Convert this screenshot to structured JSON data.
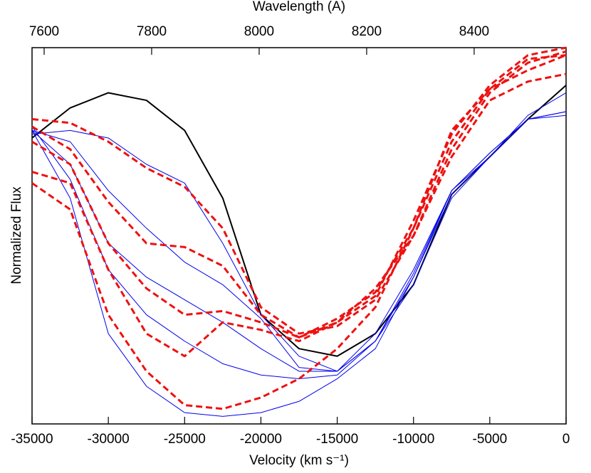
{
  "chart_data": {
    "type": "line",
    "xlabel": "Velocity (km s⁻¹)",
    "ylabel": "Normalized Flux",
    "x2label": "Wavelength (A)",
    "x": [
      -35000,
      -32500,
      -30000,
      -27500,
      -25000,
      -22500,
      -20000,
      -17500,
      -15000,
      -12500,
      -10000,
      -7500,
      -5000,
      -2500,
      0
    ],
    "xlim": [
      -35000,
      0
    ],
    "xticks": [
      -35000,
      -30000,
      -25000,
      -20000,
      -15000,
      -10000,
      -5000,
      0
    ],
    "x2lim": [
      7577.5,
      8571
    ],
    "x2ticks": [
      7600,
      7800,
      8000,
      8200,
      8400
    ],
    "ylim": [
      0,
      1
    ],
    "series": [
      {
        "color": "#000000",
        "dashed": false,
        "width": 2,
        "values": [
          0.76,
          0.84,
          0.88,
          0.86,
          0.78,
          0.6,
          0.29,
          0.2,
          0.18,
          0.24,
          0.37,
          0.61,
          0.71,
          0.81,
          0.9
        ]
      },
      {
        "color": "#0000ee",
        "dashed": false,
        "width": 1,
        "values": [
          0.77,
          0.78,
          0.76,
          0.69,
          0.64,
          0.48,
          0.29,
          0.18,
          0.14,
          0.22,
          0.37,
          0.6,
          0.71,
          0.82,
          0.88
        ]
      },
      {
        "color": "#0000ee",
        "dashed": false,
        "width": 1,
        "values": [
          0.78,
          0.75,
          0.62,
          0.52,
          0.43,
          0.37,
          0.28,
          0.15,
          0.14,
          0.22,
          0.39,
          0.62,
          0.71,
          0.81,
          0.83
        ]
      },
      {
        "color": "#0000ee",
        "dashed": false,
        "width": 1,
        "values": [
          0.78,
          0.69,
          0.48,
          0.39,
          0.33,
          0.27,
          0.2,
          0.14,
          0.14,
          0.24,
          0.41,
          0.62,
          0.72,
          0.81,
          0.83
        ]
      },
      {
        "color": "#0000ee",
        "dashed": false,
        "width": 1,
        "values": [
          0.79,
          0.65,
          0.41,
          0.29,
          0.22,
          0.16,
          0.13,
          0.12,
          0.13,
          0.22,
          0.4,
          0.62,
          0.72,
          0.81,
          0.83
        ]
      },
      {
        "color": "#0000ee",
        "dashed": false,
        "width": 1,
        "values": [
          0.78,
          0.6,
          0.24,
          0.1,
          0.03,
          0.02,
          0.03,
          0.06,
          0.12,
          0.2,
          0.39,
          0.61,
          0.71,
          0.81,
          0.82
        ]
      },
      {
        "color": "#ee1111",
        "dashed": true,
        "width": 3,
        "values": [
          0.81,
          0.8,
          0.75,
          0.68,
          0.63,
          0.52,
          0.31,
          0.24,
          0.26,
          0.33,
          0.5,
          0.73,
          0.88,
          0.96,
          0.99
        ]
      },
      {
        "color": "#ee1111",
        "dashed": true,
        "width": 3,
        "values": [
          0.79,
          0.73,
          0.59,
          0.48,
          0.47,
          0.42,
          0.29,
          0.23,
          0.28,
          0.35,
          0.52,
          0.75,
          0.89,
          0.97,
          0.98
        ]
      },
      {
        "color": "#ee1111",
        "dashed": true,
        "width": 3,
        "values": [
          0.75,
          0.69,
          0.48,
          0.36,
          0.29,
          0.3,
          0.27,
          0.23,
          0.27,
          0.34,
          0.54,
          0.77,
          0.9,
          0.98,
          1.0
        ]
      },
      {
        "color": "#ee1111",
        "dashed": true,
        "width": 3,
        "values": [
          0.64,
          0.57,
          0.29,
          0.14,
          0.05,
          0.04,
          0.07,
          0.12,
          0.2,
          0.31,
          0.52,
          0.78,
          0.89,
          0.94,
          0.98
        ]
      },
      {
        "color": "#ee1111",
        "dashed": true,
        "width": 3,
        "values": [
          0.67,
          0.64,
          0.41,
          0.24,
          0.18,
          0.27,
          0.25,
          0.22,
          0.27,
          0.36,
          0.5,
          0.71,
          0.86,
          0.91,
          0.93
        ]
      }
    ]
  }
}
